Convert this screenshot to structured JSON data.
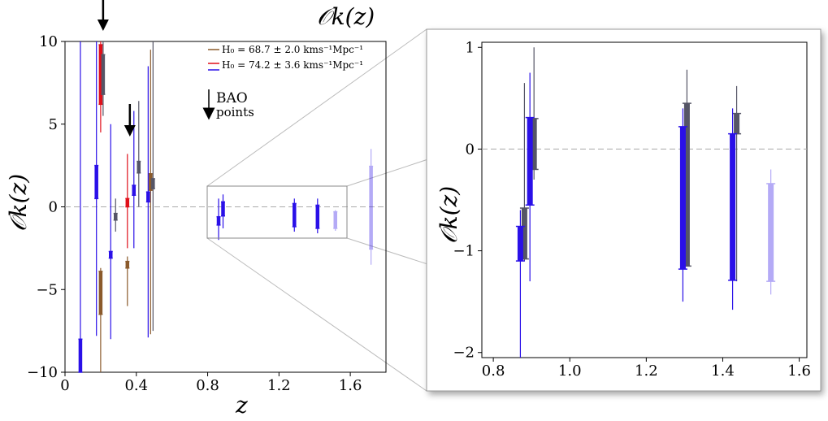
{
  "chart_data": [
    {
      "type": "scatter",
      "panel": "main",
      "title": "𝒪k(z)",
      "xlabel": "z",
      "ylabel": "𝒪k(z)",
      "xlim": [
        0,
        1.8
      ],
      "ylim": [
        -10,
        10
      ],
      "x_ticks": [
        0,
        0.4,
        0.8,
        1.2,
        1.6
      ],
      "x_tick_labels": [
        "0",
        "0.4",
        "0.8",
        "1.2",
        "1.6"
      ],
      "y_ticks": [
        10,
        5,
        0,
        -5,
        -10
      ],
      "y_tick_labels": [
        "10",
        "5",
        "0",
        "−5",
        "−10"
      ],
      "legend": {
        "placement": "top-right",
        "entries": [
          {
            "label": "H₀ = 68.7 ± 2.0 kms⁻¹Mpc⁻¹",
            "color": "#8B5A2B"
          },
          {
            "label": "H₀ = 74.2 ± 3.6 kms⁻¹Mpc⁻¹",
            "color": "#e0101a"
          },
          {
            "label": "",
            "color": "#2a10e8"
          }
        ]
      },
      "annotation": {
        "line1": "BAO",
        "line2": "points"
      },
      "bao_arrows_at_z": [
        0.2,
        0.35
      ],
      "series": [
        {
          "name": "H0=68.7",
          "color": "#8B5A2B",
          "points": [
            {
              "x": 0.2,
              "y": -5.2,
              "err_lo": 1.3,
              "err_hi": 1.3,
              "wlo": -10,
              "whi": -3.7
            },
            {
              "x": 0.35,
              "y": -3.5,
              "err_lo": 0.2,
              "err_hi": 0.2,
              "wlo": -6.0,
              "whi": -3.0
            },
            {
              "x": 0.48,
              "y": 1.5,
              "err_lo": 0.5,
              "err_hi": 0.5,
              "wlo": -7.7,
              "whi": 9.5
            }
          ]
        },
        {
          "name": "H0=74.2",
          "color": "#e0101a",
          "points": [
            {
              "x": 0.2,
              "y": 8.0,
              "err_lo": 1.8,
              "err_hi": 1.8,
              "wlo": 4.5,
              "whi": 10
            },
            {
              "x": 0.35,
              "y": 0.25,
              "err_lo": 0.25,
              "err_hi": 0.25,
              "wlo": -2.5,
              "whi": 3.2
            }
          ]
        },
        {
          "name": "blue",
          "color": "#2a10e8",
          "points": [
            {
              "x": 0.1,
              "y": -9.0,
              "err_lo": 1.0,
              "err_hi": 1.0,
              "wlo": -10,
              "whi": 10
            },
            {
              "x": 0.19,
              "y": 1.5,
              "err_lo": 1.0,
              "err_hi": 1.0,
              "wlo": -7.8,
              "whi": 10
            },
            {
              "x": 0.27,
              "y": -2.9,
              "err_lo": 0.2,
              "err_hi": 0.2,
              "wlo": -8.0,
              "whi": 5.0
            },
            {
              "x": 0.4,
              "y": 1.0,
              "err_lo": 0.3,
              "err_hi": 0.3,
              "wlo": -2.5,
              "whi": 5.8
            },
            {
              "x": 0.48,
              "y": 0.6,
              "err_lo": 0.3,
              "err_hi": 0.3,
              "wlo": -7.9,
              "whi": 8.5
            },
            {
              "x": 0.875,
              "y": -0.85,
              "err_lo": 0.25,
              "err_hi": 0.25,
              "wlo": -2.0,
              "whi": 0.5
            },
            {
              "x": 0.9,
              "y": -0.1,
              "err_lo": 0.45,
              "err_hi": 0.4,
              "wlo": -1.3,
              "whi": 0.75
            },
            {
              "x": 1.3,
              "y": -0.5,
              "err_lo": 0.7,
              "err_hi": 0.7,
              "wlo": -1.5,
              "whi": 0.5
            },
            {
              "x": 1.43,
              "y": -0.6,
              "err_lo": 0.7,
              "err_hi": 0.7,
              "wlo": -1.6,
              "whi": 0.5
            },
            {
              "x": 1.53,
              "y": -0.8,
              "err_lo": 0.5,
              "err_hi": 0.5,
              "wlo": -1.45,
              "whi": -0.2,
              "faded": true
            },
            {
              "x": 1.73,
              "y": -0.05,
              "err_lo": 2.5,
              "err_hi": 2.5,
              "wlo": -3.5,
              "whi": 3.5,
              "faded": true
            }
          ]
        },
        {
          "name": "gray",
          "color": "#555566",
          "points": [
            {
              "x": 0.2,
              "y": 8.0,
              "err_lo": 1.2,
              "err_hi": 1.2,
              "wlo": 5.5,
              "whi": 10
            },
            {
              "x": 0.27,
              "y": -0.6,
              "err_lo": 0.2,
              "err_hi": 0.2,
              "wlo": -1.5,
              "whi": 0.5
            },
            {
              "x": 0.4,
              "y": 2.4,
              "err_lo": 0.35,
              "err_hi": 0.35,
              "wlo": 0.0,
              "whi": 6.4
            },
            {
              "x": 0.48,
              "y": 1.4,
              "err_lo": 0.3,
              "err_hi": 0.3,
              "wlo": -7.5,
              "whi": 10
            }
          ]
        }
      ]
    },
    {
      "type": "scatter",
      "panel": "inset",
      "xlabel": "",
      "ylabel": "𝒪k(z)",
      "xlim": [
        0.77,
        1.62
      ],
      "ylim": [
        -2.05,
        1.05
      ],
      "x_ticks": [
        0.8,
        1.0,
        1.2,
        1.4,
        1.6
      ],
      "x_tick_labels": [
        "0.8",
        "1.0",
        "1.2",
        "1.4",
        "1.6"
      ],
      "y_ticks": [
        1,
        0,
        -1,
        -2
      ],
      "y_tick_labels": [
        "1",
        "0",
        "−1",
        "−2"
      ],
      "series": [
        {
          "name": "gray",
          "color": "#555566",
          "points": [
            {
              "x": 0.875,
              "y": -0.83,
              "err_lo": 0.25,
              "err_hi": 0.25,
              "wlo": -1.1,
              "whi": 0.65
            },
            {
              "x": 0.9,
              "y": 0.05,
              "err_lo": 0.25,
              "err_hi": 0.25,
              "wlo": -0.3,
              "whi": 1.0
            },
            {
              "x": 1.3,
              "y": -0.35,
              "err_lo": 0.8,
              "err_hi": 0.8,
              "wlo": -1.15,
              "whi": 0.78
            },
            {
              "x": 1.43,
              "y": 0.25,
              "err_lo": 0.1,
              "err_hi": 0.1,
              "wlo": -1.3,
              "whi": 0.62
            }
          ]
        },
        {
          "name": "blue",
          "color": "#2a10e8",
          "points": [
            {
              "x": 0.875,
              "y": -0.93,
              "err_lo": 0.17,
              "err_hi": 0.17,
              "wlo": -2.05,
              "whi": -0.6
            },
            {
              "x": 0.9,
              "y": -0.12,
              "err_lo": 0.43,
              "err_hi": 0.43,
              "wlo": -1.3,
              "whi": 0.75
            },
            {
              "x": 1.3,
              "y": -0.48,
              "err_lo": 0.7,
              "err_hi": 0.7,
              "wlo": -1.5,
              "whi": 0.4
            },
            {
              "x": 1.43,
              "y": -0.57,
              "err_lo": 0.72,
              "err_hi": 0.72,
              "wlo": -1.58,
              "whi": 0.4
            },
            {
              "x": 1.53,
              "y": -0.82,
              "err_lo": 0.48,
              "err_hi": 0.48,
              "wlo": -1.43,
              "whi": -0.2,
              "faded": true
            }
          ]
        }
      ]
    }
  ]
}
